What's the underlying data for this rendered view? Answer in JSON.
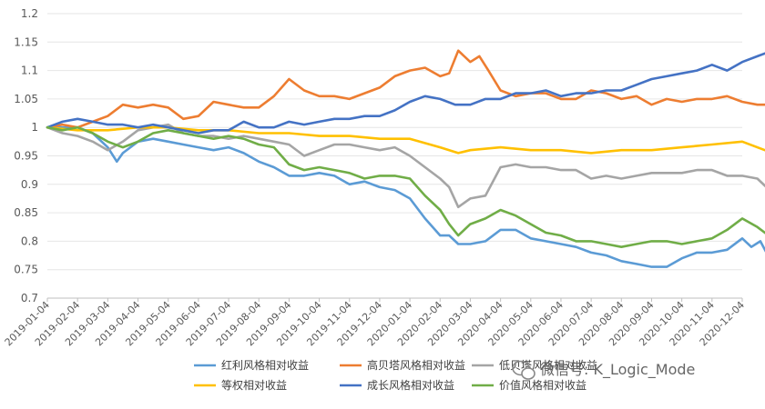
{
  "watermark": "微信号: K_Logic_Mode",
  "chart_data": {
    "type": "line",
    "title": "",
    "xlabel": "",
    "ylabel": "",
    "ylim": [
      0.7,
      1.2
    ],
    "yticks": [
      0.7,
      0.75,
      0.8,
      0.85,
      0.9,
      0.95,
      1,
      1.05,
      1.1,
      1.15,
      1.2
    ],
    "ytick_labels": [
      "0.7",
      "0.75",
      "0.8",
      "0.85",
      "0.9",
      "0.95",
      "1",
      "1.05",
      "1.1",
      "1.15",
      "1.2"
    ],
    "xtick_labels": [
      "2019-01-04",
      "2019-02-04",
      "2019-03-04",
      "2019-04-04",
      "2019-05-04",
      "2019-06-04",
      "2019-07-04",
      "2019-08-04",
      "2019-09-04",
      "2019-10-04",
      "2019-11-04",
      "2019-12-04",
      "2020-01-04",
      "2020-02-04",
      "2020-03-04",
      "2020-04-04",
      "2020-05-04",
      "2020-06-04",
      "2020-07-04",
      "2020-08-04",
      "2020-09-04",
      "2020-10-04",
      "2020-11-04",
      "2020-12-04"
    ],
    "grid": "horizontal",
    "legend": "bottom",
    "series": [
      {
        "name": "红利风格相对收益",
        "color": "#5b9bd5",
        "x": [
          0,
          1,
          1.5,
          2,
          2.3,
          2.5,
          3,
          3.5,
          4,
          4.5,
          5,
          5.5,
          6,
          6.5,
          7,
          7.5,
          8,
          8.5,
          9,
          9.5,
          10,
          10.5,
          11,
          11.5,
          12,
          12.5,
          13,
          13.3,
          13.6,
          14,
          14.5,
          15,
          15.5,
          16,
          16.5,
          17,
          17.5,
          18,
          18.5,
          19,
          19.5,
          20,
          20.5,
          21,
          21.5,
          22,
          22.5,
          23,
          23.3,
          23.6,
          24
        ],
        "values": [
          1,
          1.0,
          0.99,
          0.965,
          0.94,
          0.955,
          0.975,
          0.98,
          0.975,
          0.97,
          0.965,
          0.96,
          0.965,
          0.955,
          0.94,
          0.93,
          0.915,
          0.915,
          0.92,
          0.915,
          0.9,
          0.905,
          0.895,
          0.89,
          0.875,
          0.84,
          0.81,
          0.81,
          0.795,
          0.795,
          0.8,
          0.82,
          0.82,
          0.805,
          0.8,
          0.795,
          0.79,
          0.78,
          0.775,
          0.765,
          0.76,
          0.755,
          0.755,
          0.77,
          0.78,
          0.78,
          0.785,
          0.805,
          0.79,
          0.8,
          0.76
        ]
      },
      {
        "name": "高贝塔风格相对收益",
        "color": "#ed7d31",
        "x": [
          0,
          0.5,
          1,
          1.5,
          2,
          2.5,
          3,
          3.5,
          4,
          4.5,
          5,
          5.5,
          6,
          6.5,
          7,
          7.5,
          8,
          8.5,
          9,
          9.5,
          10,
          10.5,
          11,
          11.5,
          12,
          12.5,
          13,
          13.3,
          13.6,
          14,
          14.3,
          14.6,
          15,
          15.5,
          16,
          16.5,
          17,
          17.5,
          18,
          18.5,
          19,
          19.5,
          20,
          20.5,
          21,
          21.5,
          22,
          22.5,
          23,
          23.5,
          24
        ],
        "values": [
          1,
          1.005,
          1.0,
          1.01,
          1.02,
          1.04,
          1.035,
          1.04,
          1.035,
          1.015,
          1.02,
          1.045,
          1.04,
          1.035,
          1.035,
          1.055,
          1.085,
          1.065,
          1.055,
          1.055,
          1.05,
          1.06,
          1.07,
          1.09,
          1.1,
          1.105,
          1.09,
          1.095,
          1.135,
          1.115,
          1.125,
          1.1,
          1.065,
          1.055,
          1.06,
          1.06,
          1.05,
          1.05,
          1.065,
          1.06,
          1.05,
          1.055,
          1.04,
          1.05,
          1.045,
          1.05,
          1.05,
          1.055,
          1.045,
          1.04,
          1.04
        ]
      },
      {
        "name": "低贝塔风格相对收益",
        "color": "#a5a5a5",
        "x": [
          0,
          0.5,
          1,
          1.5,
          2,
          2.5,
          3,
          3.5,
          4,
          4.5,
          5,
          5.5,
          6,
          6.5,
          7,
          7.5,
          8,
          8.5,
          9,
          9.5,
          10,
          10.5,
          11,
          11.5,
          12,
          12.5,
          13,
          13.3,
          13.6,
          14,
          14.5,
          15,
          15.5,
          16,
          16.5,
          17,
          17.5,
          18,
          18.5,
          19,
          19.5,
          20,
          20.5,
          21,
          21.5,
          22,
          22.5,
          23,
          23.5,
          24
        ],
        "values": [
          1,
          0.99,
          0.985,
          0.975,
          0.96,
          0.975,
          0.995,
          1.0,
          1.005,
          0.99,
          0.985,
          0.985,
          0.98,
          0.985,
          0.98,
          0.975,
          0.97,
          0.95,
          0.96,
          0.97,
          0.97,
          0.965,
          0.96,
          0.965,
          0.95,
          0.93,
          0.91,
          0.895,
          0.86,
          0.875,
          0.88,
          0.93,
          0.935,
          0.93,
          0.93,
          0.925,
          0.925,
          0.91,
          0.915,
          0.91,
          0.915,
          0.92,
          0.92,
          0.92,
          0.925,
          0.925,
          0.915,
          0.915,
          0.91,
          0.885
        ]
      },
      {
        "name": "等权相对收益",
        "color": "#ffc000",
        "x": [
          0,
          1,
          2,
          3,
          4,
          5,
          6,
          7,
          8,
          9,
          10,
          11,
          12,
          13,
          13.6,
          14,
          15,
          16,
          17,
          18,
          19,
          20,
          21,
          22,
          23,
          24
        ],
        "values": [
          1,
          0.995,
          0.995,
          1.0,
          1.0,
          0.995,
          0.995,
          0.99,
          0.99,
          0.985,
          0.985,
          0.98,
          0.98,
          0.965,
          0.955,
          0.96,
          0.965,
          0.96,
          0.96,
          0.955,
          0.96,
          0.96,
          0.965,
          0.97,
          0.975,
          0.955
        ]
      },
      {
        "name": "成长风格相对收益",
        "color": "#4472c4",
        "x": [
          0,
          0.5,
          1,
          1.5,
          2,
          2.5,
          3,
          3.5,
          4,
          4.5,
          5,
          5.5,
          6,
          6.5,
          7,
          7.5,
          8,
          8.5,
          9,
          9.5,
          10,
          10.5,
          11,
          11.5,
          12,
          12.5,
          13,
          13.5,
          14,
          14.5,
          15,
          15.5,
          16,
          16.5,
          17,
          17.5,
          18,
          18.5,
          19,
          19.5,
          20,
          20.5,
          21,
          21.5,
          22,
          22.5,
          23,
          23.5,
          24
        ],
        "values": [
          1,
          1.01,
          1.015,
          1.01,
          1.005,
          1.005,
          1.0,
          1.005,
          1.0,
          0.995,
          0.99,
          0.995,
          0.995,
          1.01,
          1.0,
          1.0,
          1.01,
          1.005,
          1.01,
          1.015,
          1.015,
          1.02,
          1.02,
          1.03,
          1.045,
          1.055,
          1.05,
          1.04,
          1.04,
          1.05,
          1.05,
          1.06,
          1.06,
          1.065,
          1.055,
          1.06,
          1.06,
          1.065,
          1.065,
          1.075,
          1.085,
          1.09,
          1.095,
          1.1,
          1.11,
          1.1,
          1.115,
          1.125,
          1.135
        ]
      },
      {
        "name": "价值风格相对收益",
        "color": "#70ad47",
        "x": [
          0,
          0.5,
          1,
          1.5,
          2,
          2.5,
          3,
          3.5,
          4,
          4.5,
          5,
          5.5,
          6,
          6.5,
          7,
          7.5,
          8,
          8.5,
          9,
          9.5,
          10,
          10.5,
          11,
          11.5,
          12,
          12.5,
          13,
          13.3,
          13.6,
          14,
          14.5,
          15,
          15.5,
          16,
          16.5,
          17,
          17.5,
          18,
          18.5,
          19,
          19.5,
          20,
          20.5,
          21,
          21.5,
          22,
          22.5,
          23,
          23.5,
          24
        ],
        "values": [
          1,
          0.995,
          1.0,
          0.99,
          0.975,
          0.965,
          0.975,
          0.99,
          0.995,
          0.99,
          0.985,
          0.98,
          0.985,
          0.98,
          0.97,
          0.965,
          0.935,
          0.925,
          0.93,
          0.925,
          0.92,
          0.91,
          0.915,
          0.915,
          0.91,
          0.88,
          0.855,
          0.83,
          0.81,
          0.83,
          0.84,
          0.855,
          0.845,
          0.83,
          0.815,
          0.81,
          0.8,
          0.8,
          0.795,
          0.79,
          0.795,
          0.8,
          0.8,
          0.795,
          0.8,
          0.805,
          0.82,
          0.84,
          0.825,
          0.805
        ]
      }
    ]
  }
}
